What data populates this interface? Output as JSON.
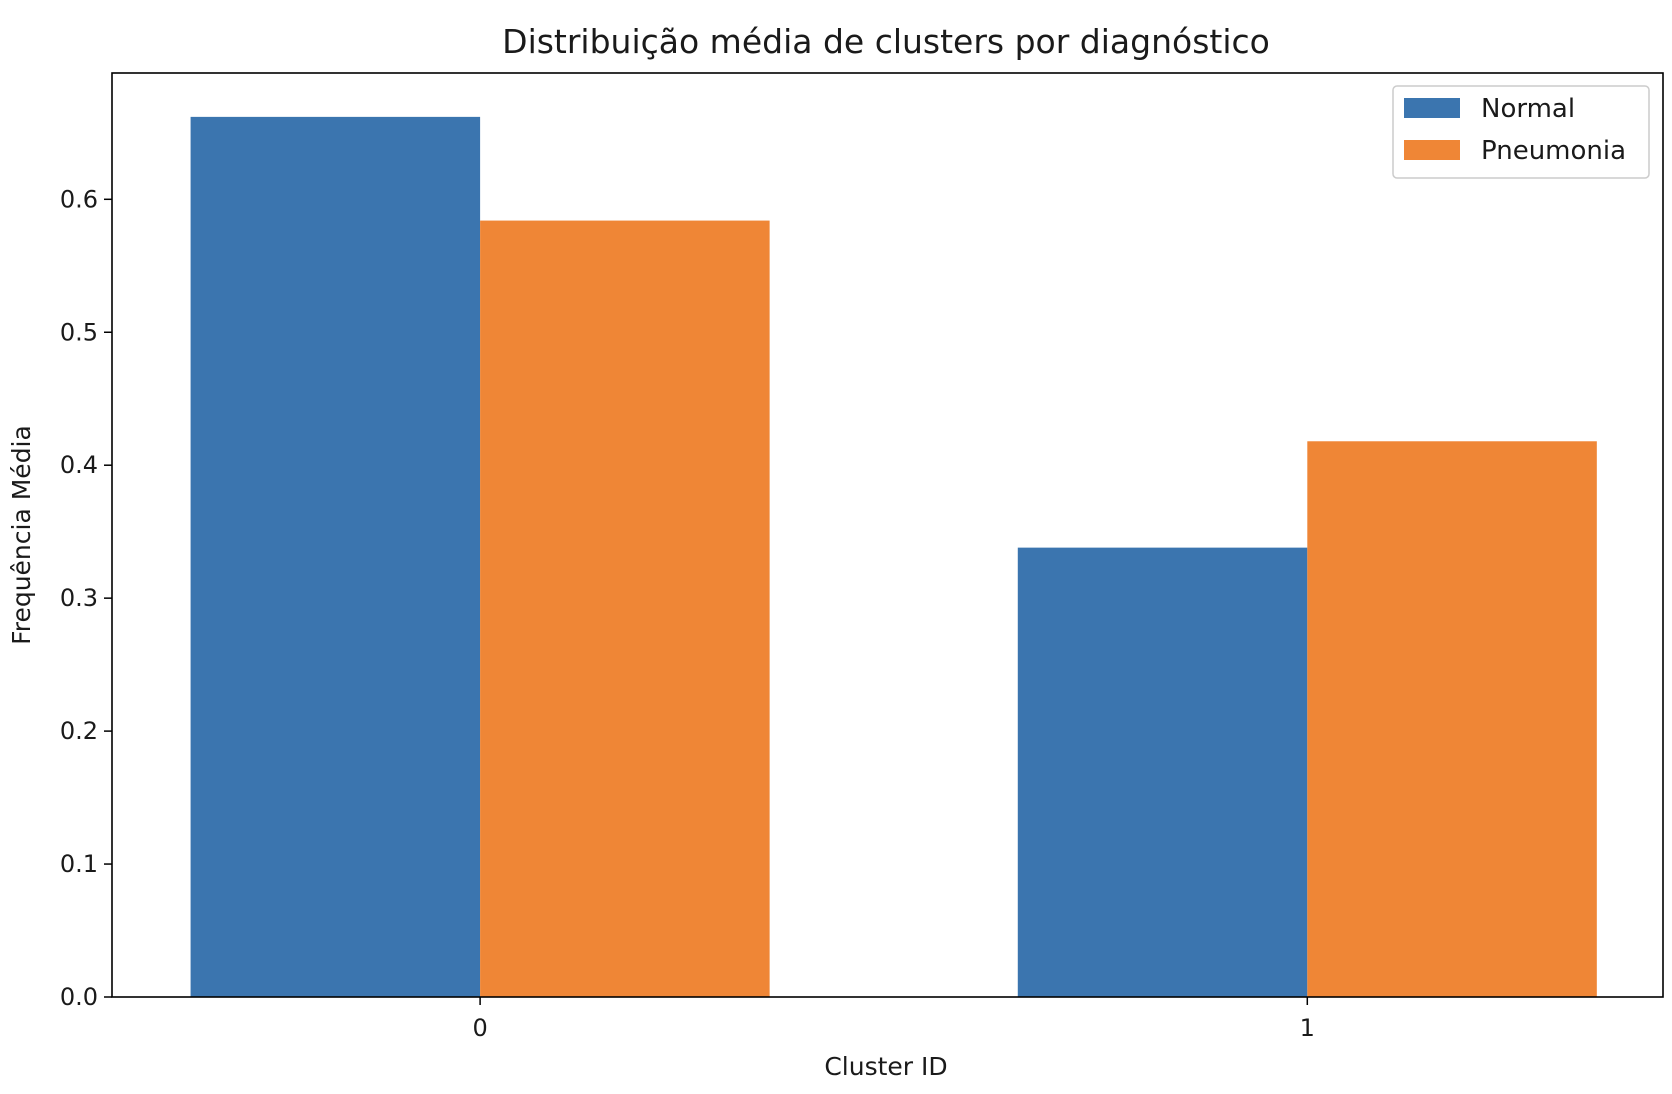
{
  "chart_data": {
    "type": "bar",
    "title": "Distribuição média de clusters por diagnóstico",
    "xlabel": "Cluster ID",
    "ylabel": "Frequência Média",
    "categories": [
      "0",
      "1"
    ],
    "series": [
      {
        "name": "Normal",
        "values": [
          0.662,
          0.338
        ],
        "color": "#3b75af"
      },
      {
        "name": "Pneumonia",
        "values": [
          0.584,
          0.418
        ],
        "color": "#ef8636"
      }
    ],
    "ylim": [
      0,
      0.695
    ],
    "yticks": [
      0.0,
      0.1,
      0.2,
      0.3,
      0.4,
      0.5,
      0.6
    ],
    "ytick_labels": [
      "0.0",
      "0.1",
      "0.2",
      "0.3",
      "0.4",
      "0.5",
      "0.6"
    ],
    "grid": false,
    "legend_position": "top-right"
  }
}
